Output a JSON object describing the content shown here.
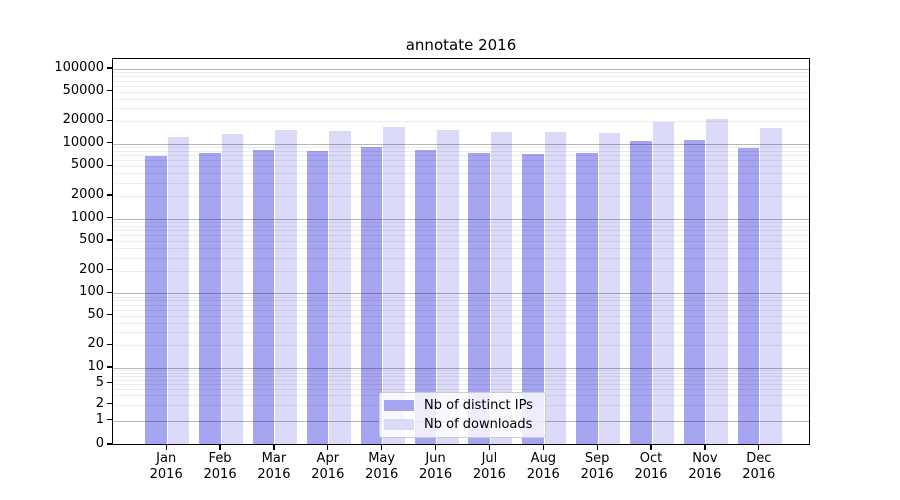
{
  "title": "annotate 2016",
  "chart_data": {
    "type": "bar",
    "title": "annotate 2016",
    "categories": [
      "Jan 2016",
      "Feb 2016",
      "Mar 2016",
      "Apr 2016",
      "May 2016",
      "Jun 2016",
      "Jul 2016",
      "Aug 2016",
      "Sep 2016",
      "Oct 2016",
      "Nov 2016",
      "Dec 2016"
    ],
    "x_labels": [
      {
        "month": "Jan",
        "year": "2016"
      },
      {
        "month": "Feb",
        "year": "2016"
      },
      {
        "month": "Mar",
        "year": "2016"
      },
      {
        "month": "Apr",
        "year": "2016"
      },
      {
        "month": "May",
        "year": "2016"
      },
      {
        "month": "Jun",
        "year": "2016"
      },
      {
        "month": "Jul",
        "year": "2016"
      },
      {
        "month": "Aug",
        "year": "2016"
      },
      {
        "month": "Sep",
        "year": "2016"
      },
      {
        "month": "Oct",
        "year": "2016"
      },
      {
        "month": "Nov",
        "year": "2016"
      },
      {
        "month": "Dec",
        "year": "2016"
      }
    ],
    "series": [
      {
        "name": "Nb of distinct IPs",
        "color": "#a5a5f2",
        "values": [
          6800,
          7500,
          8300,
          8100,
          9100,
          8200,
          7600,
          7400,
          7500,
          10900,
          11200,
          8700
        ]
      },
      {
        "name": "Nb of downloads",
        "color": "#dbdbf9",
        "values": [
          12500,
          13400,
          15200,
          14600,
          16800,
          15200,
          14400,
          14500,
          13900,
          19600,
          21300,
          16400
        ]
      }
    ],
    "y_ticks": [
      0,
      1,
      2,
      5,
      10,
      20,
      50,
      100,
      200,
      500,
      1000,
      2000,
      5000,
      10000,
      20000,
      50000,
      100000
    ],
    "yscale": "symlog",
    "ylim": [
      0,
      130000
    ],
    "xlabel": "",
    "ylabel": "",
    "grid": {
      "orientation": "horizontal",
      "major": true,
      "minor": true
    },
    "legend_position": "lower center"
  }
}
